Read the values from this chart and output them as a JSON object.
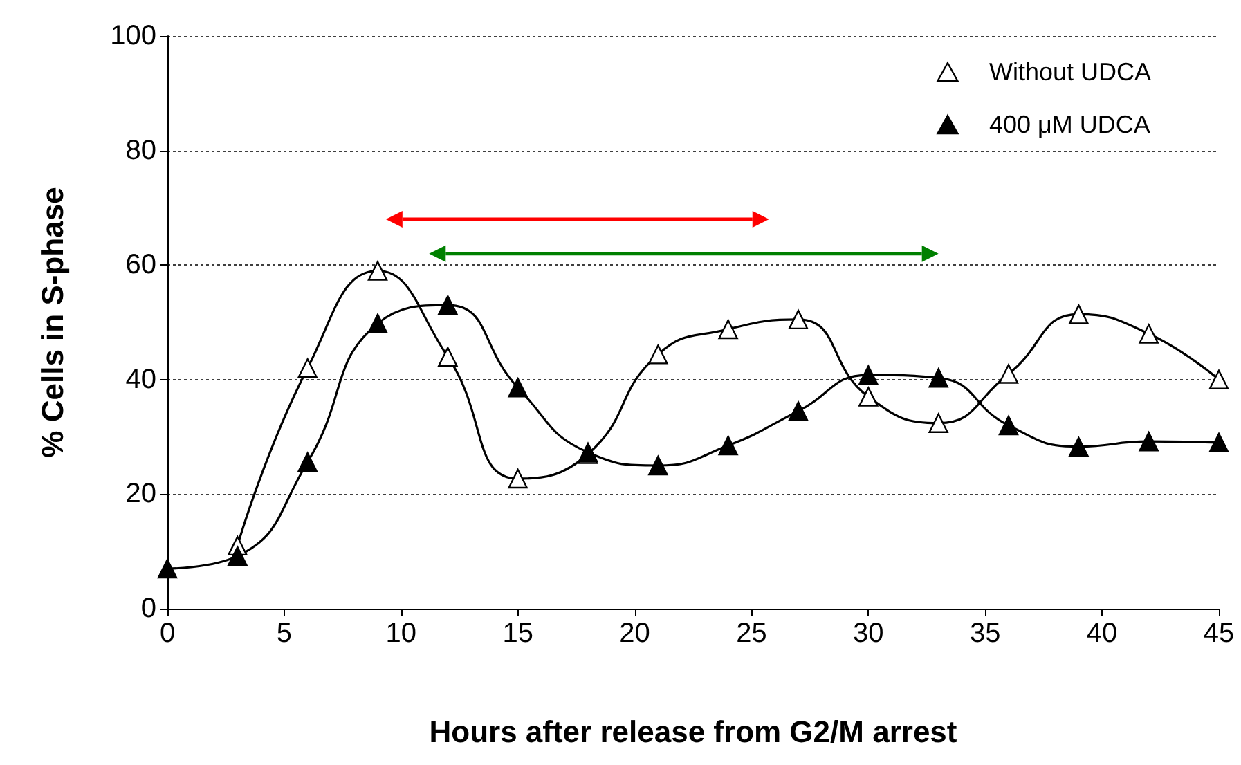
{
  "chart_data": {
    "type": "line",
    "xlabel": "Hours after release from G2/M arrest",
    "ylabel": "% Cells in S-phase",
    "x": [
      0,
      3,
      6,
      9,
      12,
      15,
      18,
      21,
      24,
      27,
      30,
      33,
      36,
      39,
      42,
      45
    ],
    "series": [
      {
        "name": "Without UDCA",
        "color": "#000000",
        "values": [
          null,
          11,
          42,
          59,
          44,
          22.7,
          27,
          44.4,
          48.8,
          50.5,
          37,
          32.4,
          41,
          51.4,
          48,
          40
        ]
      },
      {
        "name": "400 μM UDCA",
        "color": "#000000",
        "values": [
          7,
          9.2,
          25.6,
          49.8,
          53,
          38.6,
          27.3,
          25,
          28.5,
          34.5,
          40.8,
          40.3,
          32,
          28.3,
          29.2,
          29
        ]
      }
    ],
    "xlim": [
      0,
      45
    ],
    "xticks": [
      0,
      5,
      10,
      15,
      20,
      25,
      30,
      35,
      40,
      45
    ],
    "ylim": [
      0,
      100
    ],
    "yticks": [
      0,
      20,
      40,
      60,
      80,
      100
    ],
    "grid": "y",
    "legend": "top right",
    "marker": "triangle",
    "line_style": "solid"
  }
}
